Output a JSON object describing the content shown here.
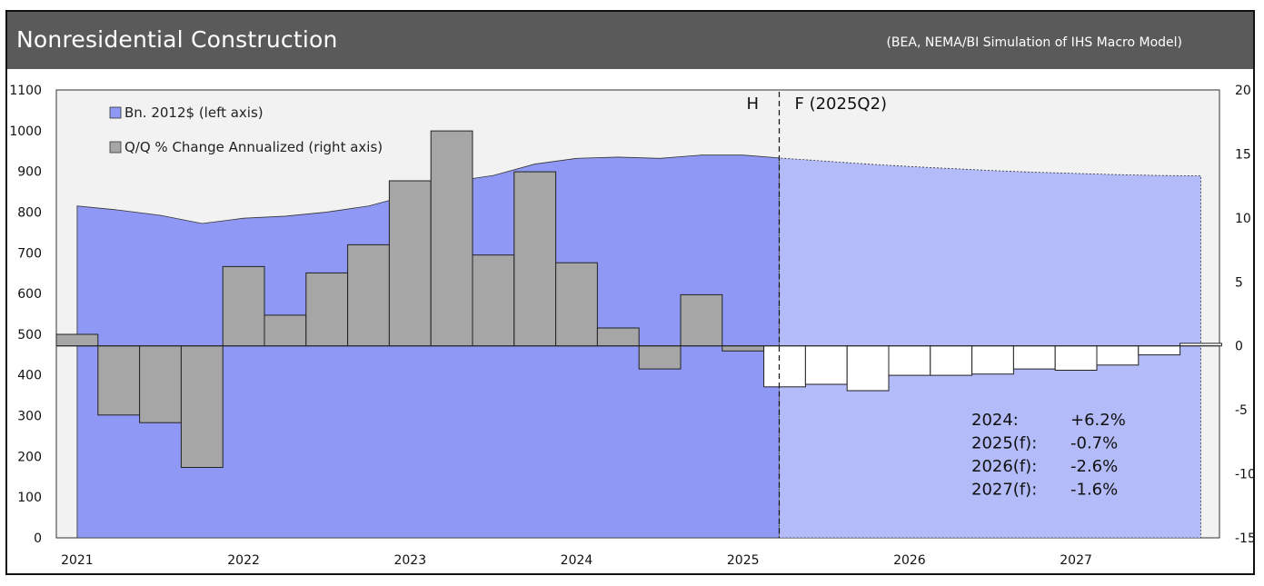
{
  "header": {
    "title": "Nonresidential Construction",
    "source": "(BEA, NEMA/BI Simulation of IHS Macro Model)"
  },
  "chart_data": {
    "type": "bar",
    "title": "Nonresidential Construction",
    "left_axis": {
      "ylim": [
        0,
        1100
      ],
      "ticks": [
        "0",
        "100",
        "200",
        "300",
        "400",
        "500",
        "600",
        "700",
        "800",
        "900",
        "1000",
        "1100"
      ]
    },
    "right_axis": {
      "ylim": [
        -15,
        20
      ],
      "ticks": [
        "-15",
        "-10",
        "-5",
        "0",
        "5",
        "10",
        "15",
        "20"
      ]
    },
    "x_ticks": [
      "2021",
      "2022",
      "2023",
      "2024",
      "2025",
      "2026",
      "2027"
    ],
    "legend": [
      {
        "label": "Bn. 2012$ (left axis)",
        "color": "#8f99f5"
      },
      {
        "label": "Q/Q % Change Annualized (right axis)",
        "color": "#a6a6a6"
      }
    ],
    "quarters": [
      "2021Q1",
      "2021Q2",
      "2021Q3",
      "2021Q4",
      "2022Q1",
      "2022Q2",
      "2022Q3",
      "2022Q4",
      "2023Q1",
      "2023Q2",
      "2023Q3",
      "2023Q4",
      "2024Q1",
      "2024Q2",
      "2024Q3",
      "2024Q4",
      "2025Q1",
      "2025Q2",
      "2025Q3",
      "2025Q4",
      "2026Q1",
      "2026Q2",
      "2026Q3",
      "2026Q4",
      "2027Q1",
      "2027Q2",
      "2027Q3",
      "2027Q4"
    ],
    "series": [
      {
        "name": "Bn. 2012$ (left axis)",
        "axis": "left",
        "type": "area",
        "values": [
          815,
          805,
          792,
          772,
          785,
          790,
          800,
          815,
          842,
          875,
          890,
          918,
          932,
          935,
          932,
          940,
          940,
          932,
          925,
          918,
          912,
          907,
          902,
          898,
          895,
          892,
          890,
          889
        ]
      },
      {
        "name": "Q/Q % Change Annualized (right axis)",
        "axis": "right",
        "type": "bar",
        "values": [
          0.9,
          -5.4,
          -6.0,
          -9.5,
          6.2,
          2.4,
          5.7,
          7.9,
          12.9,
          16.8,
          7.1,
          13.6,
          6.5,
          1.4,
          -1.8,
          4.0,
          -0.4,
          -3.2,
          -3.0,
          -3.5,
          -2.3,
          -2.3,
          -2.2,
          -1.8,
          -1.9,
          -1.5,
          -0.7,
          0.2
        ]
      }
    ],
    "forecast_start": "2025Q2",
    "markers": {
      "history_label": "H",
      "forecast_label": "F (2025Q2)"
    },
    "annual_stats": [
      {
        "label": "2024:",
        "value": "+6.2%"
      },
      {
        "label": "2025(f):",
        "value": "-0.7%"
      },
      {
        "label": "2026(f):",
        "value": "-2.6%"
      },
      {
        "label": "2027(f):",
        "value": "-1.6%"
      }
    ],
    "colors": {
      "area_history": "#8f99f5",
      "area_forecast": "#b3bbf8",
      "bar_history": "#a6a6a6",
      "bar_forecast": "#ffffff",
      "plot_bg": "#f2f2f2"
    },
    "grid": false,
    "legend_placement": "top-left"
  }
}
